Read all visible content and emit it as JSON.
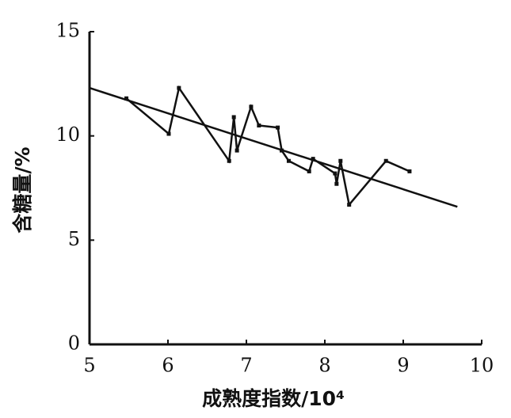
{
  "chart_data": {
    "type": "line",
    "x_label": "成熟度指数/10⁴",
    "y_label": "含糖量/%",
    "xlim": [
      5,
      10
    ],
    "xticks": [
      5,
      6,
      7,
      8,
      9,
      10
    ],
    "ylim": [
      0,
      15
    ],
    "yticks": [
      0,
      5,
      10,
      15
    ],
    "grid": false,
    "series": [
      {
        "color": "#111111",
        "markers": true,
        "x": [
          5.47,
          6.01,
          6.14,
          6.78,
          6.84,
          6.88,
          7.06,
          7.16,
          7.4,
          7.45,
          7.54,
          7.8,
          7.85,
          8.13,
          8.15,
          8.2,
          8.31,
          8.78,
          9.08
        ],
        "values": [
          11.8,
          10.1,
          12.3,
          8.8,
          10.9,
          9.3,
          11.4,
          10.5,
          10.4,
          9.3,
          8.8,
          8.3,
          8.9,
          8.2,
          7.7,
          8.8,
          6.7,
          8.8,
          8.3
        ]
      },
      {
        "color": "#111111",
        "markers": false,
        "x": [
          5,
          9.69
        ],
        "values": [
          12.3,
          6.6
        ]
      }
    ]
  }
}
